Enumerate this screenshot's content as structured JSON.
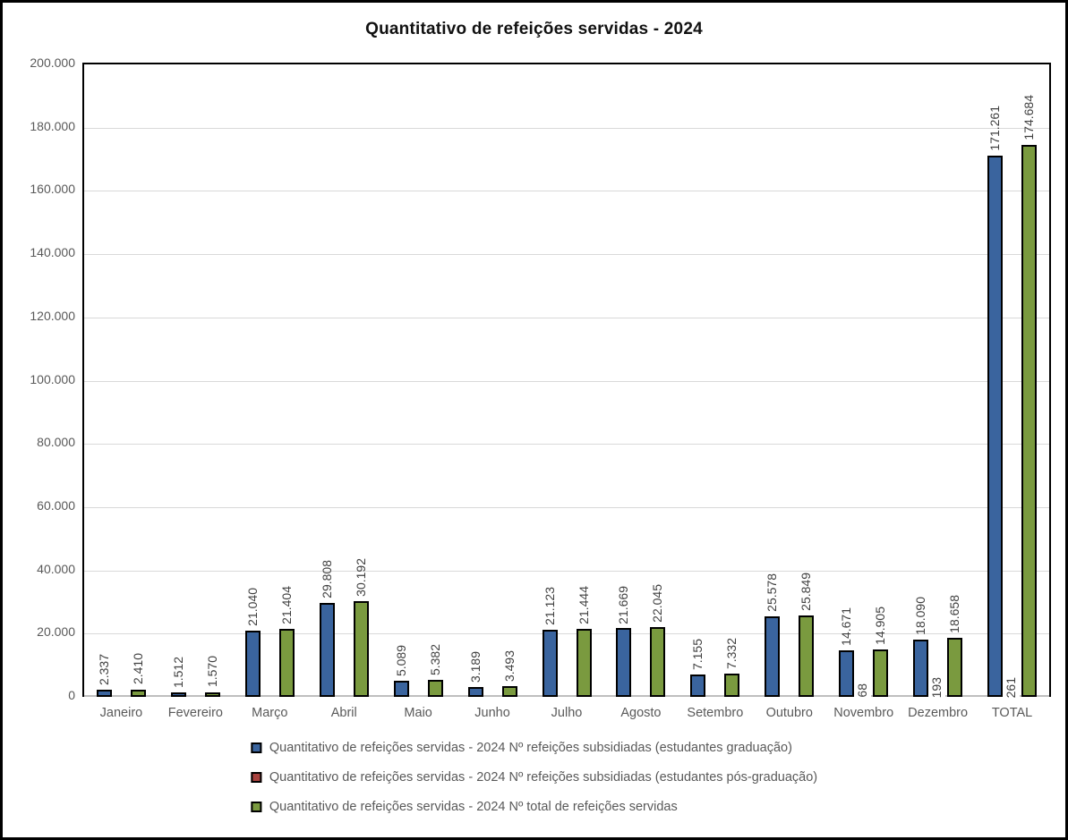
{
  "chart_data": {
    "type": "bar",
    "title": "Quantitativo de refeições servidas - 2024",
    "categories": [
      "Janeiro",
      "Fevereiro",
      "Março",
      "Abril",
      "Maio",
      "Junho",
      "Julho",
      "Agosto",
      "Setembro",
      "Outubro",
      "Novembro",
      "Dezembro",
      "TOTAL"
    ],
    "series": [
      {
        "key": "graduacao",
        "name": "Quantitativo de refeições servidas - 2024 Nº refeições subsidiadas (estudantes graduação)",
        "color": "#3A649E",
        "values": [
          2337,
          1512,
          21040,
          29808,
          5089,
          3189,
          21123,
          21669,
          7155,
          25578,
          14671,
          18090,
          171261
        ],
        "labels": [
          "2.337",
          "1.512",
          "21.040",
          "29.808",
          "5.089",
          "3.189",
          "21.123",
          "21.669",
          "7.155",
          "25.578",
          "14.671",
          "18.090",
          "171.261"
        ]
      },
      {
        "key": "pos-graduacao",
        "name": "Quantitativo de refeições servidas - 2024 Nº refeições subsidiadas (estudantes pós-graduação)",
        "color": "#A8423E",
        "values": [
          0,
          0,
          0,
          0,
          0,
          0,
          0,
          0,
          0,
          0,
          68,
          193,
          261
        ],
        "labels": [
          "",
          "",
          "",
          "",
          "",
          "",
          "",
          "",
          "",
          "",
          "68",
          "193",
          "261"
        ],
        "label_background": "#FFFFFF"
      },
      {
        "key": "total",
        "name": "Quantitativo de refeições servidas - 2024 Nº total de refeições servidas",
        "color": "#7A9A3F",
        "values": [
          2410,
          1570,
          21404,
          30192,
          5382,
          3493,
          21444,
          22045,
          7332,
          25849,
          14905,
          18658,
          174684
        ],
        "labels": [
          "2.410",
          "1.570",
          "21.404",
          "30.192",
          "5.382",
          "3.493",
          "21.444",
          "22.045",
          "7.332",
          "25.849",
          "14.905",
          "18.658",
          "174.684"
        ]
      }
    ],
    "y_axis": {
      "min": 0,
      "max": 200000,
      "step": 20000,
      "tick_labels": [
        "0",
        "20.000",
        "40.000",
        "60.000",
        "80.000",
        "100.000",
        "120.000",
        "140.000",
        "160.000",
        "180.000",
        "200.000"
      ]
    },
    "grid": true,
    "legend_position": "bottom",
    "colors": {
      "gridline": "#D9D9D9",
      "axis_line": "#BFBFBF",
      "axis_text": "#595959",
      "data_label_text": "#404040",
      "bar_border": "#000000",
      "frame_border": "#000000"
    }
  }
}
